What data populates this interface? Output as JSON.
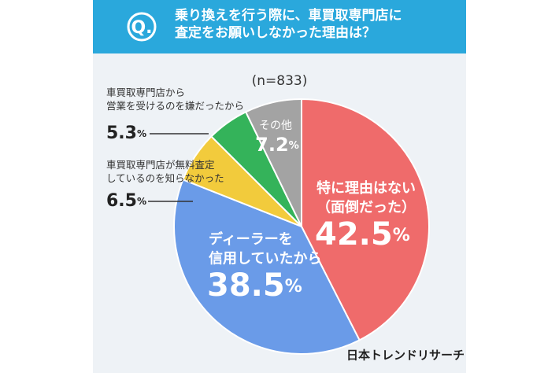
{
  "chart_data": {
    "type": "pie",
    "q_label": "Q.",
    "title": "乗り換えを行う際に、車買取専門店に\n査定をお願いしなかった理由は？",
    "sample_size": "(n=833)",
    "source": "日本トレンドリサーチ",
    "categories": [
      "特に理由はない\n（面倒だった）",
      "ディーラーを\n信用していたから",
      "車買取専門店が無料査定\nしているのを知らなかった",
      "車買取専門店から\n営業を受けるのを嫌だったから",
      "その他"
    ],
    "values": [
      42.5,
      38.5,
      6.5,
      5.3,
      7.2
    ],
    "value_labels": [
      "42.5%",
      "38.5%",
      "6.5%",
      "5.3%",
      "7.2%"
    ],
    "colors": [
      "#ef6b6b",
      "#6a9be8",
      "#f2cb3c",
      "#34b35a",
      "#a3a3a3"
    ]
  }
}
